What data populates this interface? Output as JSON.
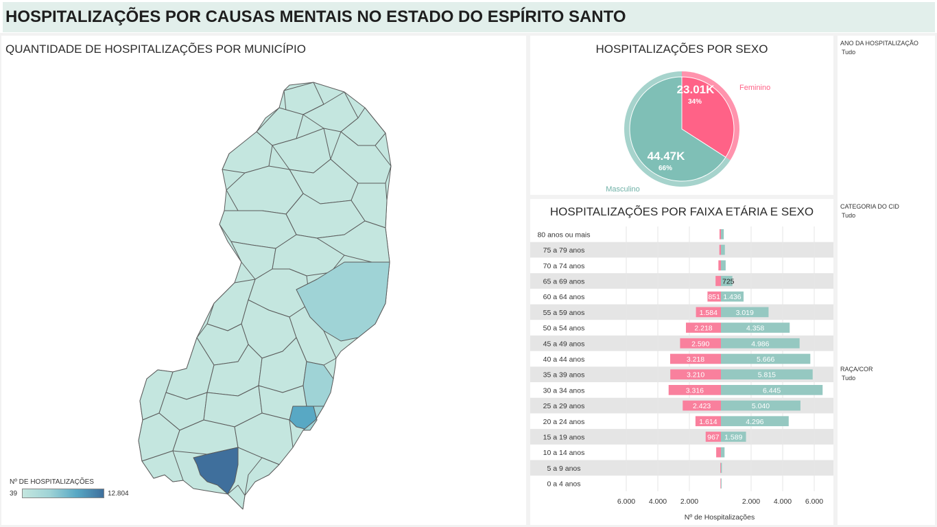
{
  "page_title": "HOSPITALIZAÇÕES POR CAUSAS MENTAIS NO ESTADO DO ESPÍRITO SANTO",
  "map": {
    "title": "QUANTIDADE DE HOSPITALIZAÇÕES POR MUNICÍPIO",
    "legend": {
      "title": "Nº DE HOSPITALIZAÇÕES",
      "min": "39",
      "max": "12.804",
      "colors": [
        "#c4e6df",
        "#9fd3d6",
        "#58a8c4",
        "#3f6f9c"
      ]
    }
  },
  "sex_chart": {
    "title": "HOSPITALIZAÇÕES POR SEXO"
  },
  "age_chart": {
    "title": "HOSPITALIZAÇÕES POR FAIXA ETÁRIA E SEXO",
    "xlabel": "Nº de Hospitalizações",
    "tick_labels": [
      "6.000",
      "4.000",
      "2.000",
      "2.000",
      "4.000",
      "6.000"
    ]
  },
  "filters": [
    {
      "label": "ANO DA HOSPITALIZAÇÃO",
      "value": "Tudo"
    },
    {
      "label": "CATEGORIA DO CID",
      "value": "Tudo"
    },
    {
      "label": "RAÇA/COR",
      "value": "Tudo"
    }
  ],
  "colors": {
    "female": "#ff6287",
    "female_bar": "#f9809d",
    "male": "#7fbfb6",
    "male_bar": "#95c8c1",
    "title_bg": "#e2efeb",
    "row_stripe": "#e5e5e5"
  },
  "chart_data": [
    {
      "type": "pie",
      "title": "HOSPITALIZAÇÕES POR SEXO",
      "slices": [
        {
          "name": "Feminino",
          "value": 23010,
          "value_label": "23.01K",
          "percent_label": "34%"
        },
        {
          "name": "Masculino",
          "value": 44470,
          "value_label": "44.47K",
          "percent_label": "66%"
        }
      ]
    },
    {
      "type": "bar",
      "title": "HOSPITALIZAÇÕES POR FAIXA ETÁRIA E SEXO",
      "xlabel": "Nº de Hospitalizações",
      "categories": [
        "80 anos ou mais",
        "75 a 79 anos",
        "70 a 74 anos",
        "65 a 69 anos",
        "60 a 64 anos",
        "55 a 59 anos",
        "50 a 54 anos",
        "45 a 49 anos",
        "40 a 44 anos",
        "35 a 39 anos",
        "30 a 34 anos",
        "25 a 29 anos",
        "20 a 24 anos",
        "15 a 19 anos",
        "10 a 14 anos",
        "5 a 9 anos",
        "0 a 4 anos"
      ],
      "series": [
        {
          "name": "Feminino",
          "values": [
            90,
            100,
            160,
            340,
            851,
            1584,
            2218,
            2590,
            3218,
            3210,
            3316,
            2423,
            1614,
            967,
            300,
            40,
            30
          ],
          "labels": [
            "",
            "",
            "",
            "",
            "851",
            "1.584",
            "2.218",
            "2.590",
            "3.218",
            "3.210",
            "3.316",
            "2.423",
            "1.614",
            "967",
            "",
            "",
            ""
          ]
        },
        {
          "name": "Masculino",
          "values": [
            180,
            250,
            300,
            725,
            1436,
            3019,
            4358,
            4986,
            5666,
            5815,
            6445,
            5040,
            4296,
            1589,
            230,
            60,
            40
          ],
          "labels": [
            "",
            "",
            "",
            "725",
            "1.436",
            "3.019",
            "4.358",
            "4.986",
            "5.666",
            "5.815",
            "6.445",
            "5.040",
            "4.296",
            "1.589",
            "",
            "",
            ""
          ]
        }
      ],
      "xlim": [
        -6000,
        6000
      ]
    }
  ]
}
